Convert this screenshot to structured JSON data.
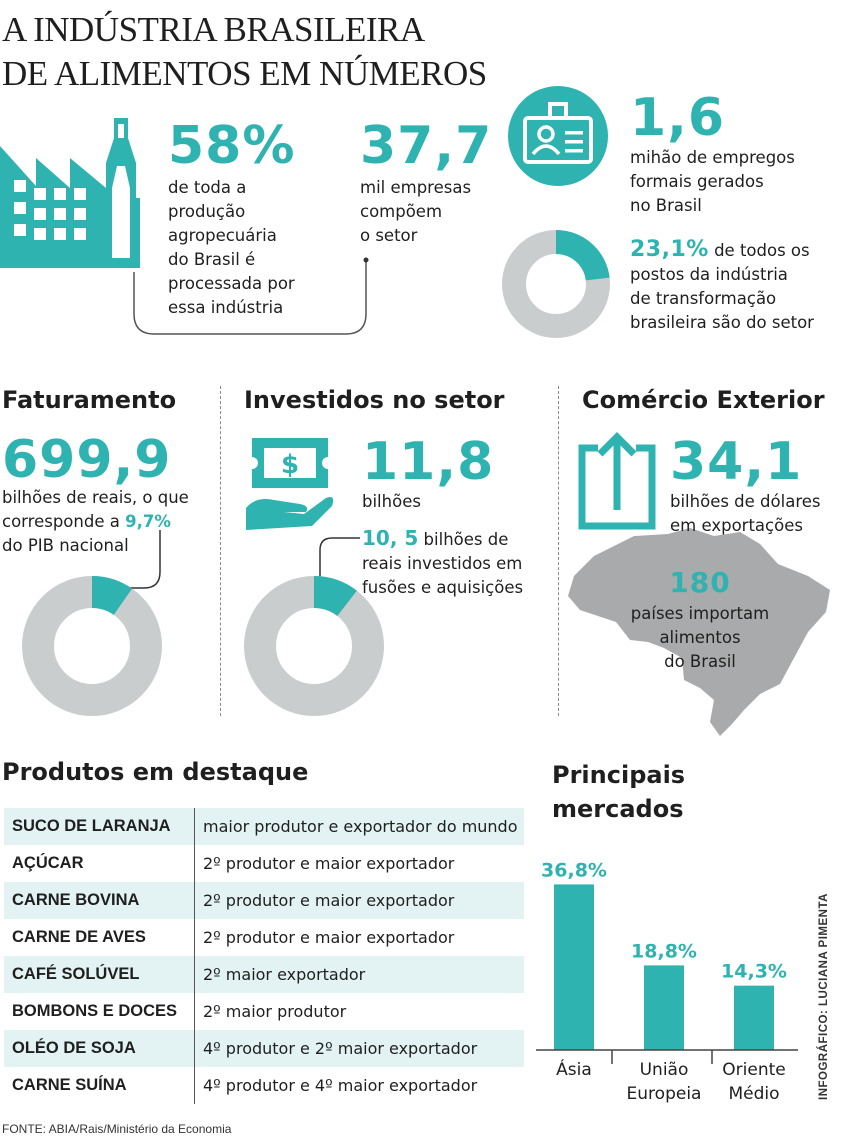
{
  "header": {
    "title_line1": "A INDÚSTRIA BRASILEIRA",
    "title_line2": "DE ALIMENTOS EM NÚMEROS"
  },
  "stats": {
    "agro": {
      "value": "58%",
      "lines": [
        "de toda a",
        "produção",
        "agropecuária",
        "do Brasil é",
        "processada por",
        "essa indústria"
      ]
    },
    "companies": {
      "value": "37,7",
      "lines": [
        "mil empresas",
        "compõem",
        "o setor"
      ]
    },
    "jobs": {
      "value": "1,6",
      "lines": [
        "mihão de empregos",
        "formais gerados",
        "no Brasil"
      ]
    },
    "jobs_share": {
      "value": "23,1%",
      "line1_rest": " de todos os",
      "lines": [
        "postos da indústria",
        "de transformação",
        "brasileira são do setor"
      ],
      "percent": 23.1
    }
  },
  "revenue": {
    "heading": "Faturamento",
    "value": "699,9",
    "line1": "bilhões de reais, o que",
    "line2_pre": "corresponde a ",
    "line2_highlight": "9,7%",
    "line3": "do PIB nacional",
    "percent": 9.7
  },
  "investment": {
    "heading": "Investidos no setor",
    "value": "11,8",
    "unit": "bilhões",
    "sub_value": "10, 5",
    "sub_line1_rest": " bilhões de",
    "sub_lines": [
      "reais investidos em",
      "fusões e aquisições"
    ],
    "percent": 10.5
  },
  "trade": {
    "heading": "Comércio Exterior",
    "value": "34,1",
    "lines": [
      "bilhões de dólares",
      "em exportações"
    ],
    "countries_value": "180",
    "countries_lines": [
      "países importam",
      "alimentos",
      "do Brasil"
    ]
  },
  "products": {
    "heading": "Produtos em destaque",
    "rows": [
      {
        "name": "SUCO DE LARANJA",
        "desc": "maior produtor e exportador do mundo"
      },
      {
        "name": "AÇÚCAR",
        "desc": "2º produtor e maior exportador"
      },
      {
        "name": "CARNE BOVINA",
        "desc": "2º produtor e maior exportador"
      },
      {
        "name": "CARNE DE AVES",
        "desc": "2º produtor e maior exportador"
      },
      {
        "name": "CAFÉ SOLÚVEL",
        "desc": "2º maior exportador"
      },
      {
        "name": "BOMBONS E DOCES",
        "desc": "2º maior produtor"
      },
      {
        "name": "OLÉO DE SOJA",
        "desc": "4º produtor e 2º maior exportador"
      },
      {
        "name": "CARNE SUÍNA",
        "desc": "4º produtor e 4º maior exportador"
      }
    ]
  },
  "chart_data": {
    "type": "bar",
    "title": "Principais mercados",
    "title_lines": [
      "Principais",
      "mercados"
    ],
    "categories": [
      [
        "Ásia"
      ],
      [
        "União",
        "Europeia"
      ],
      [
        "Oriente",
        "Médio"
      ]
    ],
    "values": [
      36.8,
      18.8,
      14.3
    ],
    "value_labels": [
      "36,8%",
      "18,8%",
      "14,3%"
    ],
    "ylim": [
      0,
      40
    ],
    "grid": false,
    "color": "#2fb3b0"
  },
  "colors": {
    "accent": "#2fb3b0",
    "donut_rest": "#c9cdcd",
    "map": "#a9aaab",
    "table_shade": "#e3f2f2"
  },
  "footer": {
    "source": "FONTE: ABIA/Rais/Ministério da Economia",
    "credit": "INFOGRÁFICO: LUCIANA PIMENTA"
  }
}
